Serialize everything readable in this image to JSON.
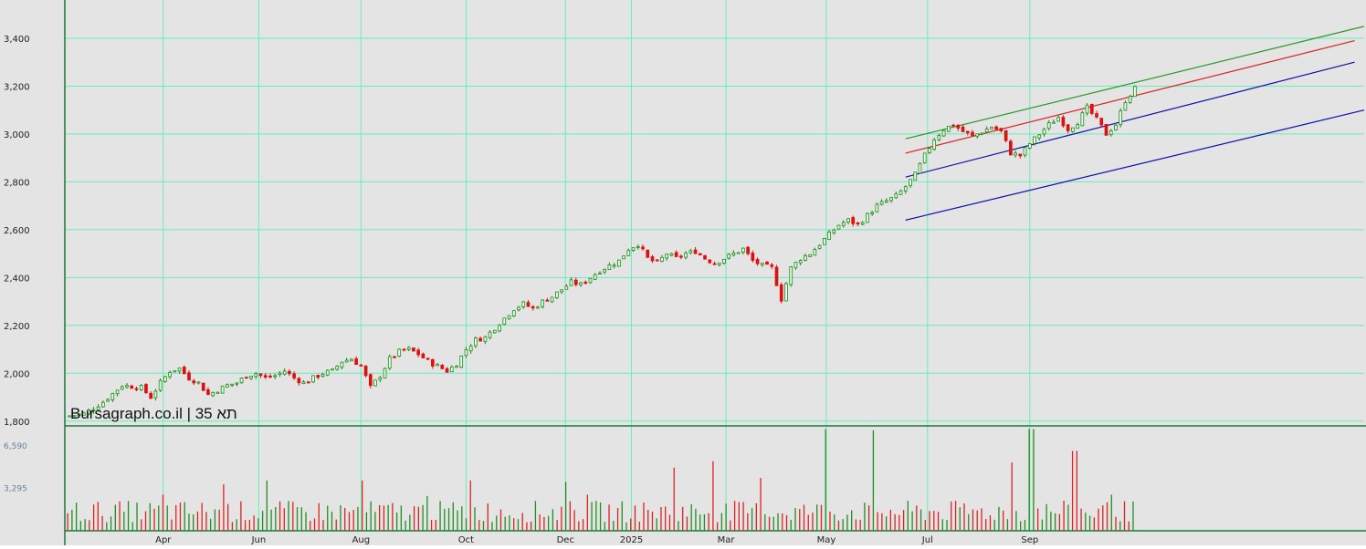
{
  "colors": {
    "background": "#e4e4e4",
    "grid": "#66eebb",
    "up": "#1a8a1a",
    "down": "#dd1111",
    "volume_up": "#1f8f1f",
    "volume_down": "#dd2222",
    "channel_top": "#2a9a2a",
    "channel_mid": "#dd2222",
    "channel_blue": "#1010aa",
    "panel_border": "#1a7a3a"
  },
  "watermark": "Bursagraph.co.il | תא 35",
  "chart_data": [
    {
      "type": "candlestick",
      "ylim": [
        1780,
        3560
      ],
      "yticks": [
        "3,400",
        "3,200",
        "3,000",
        "2,800",
        "2,600",
        "2,400",
        "2,200",
        "2,000",
        "1,800"
      ],
      "ytick_values": [
        3400,
        3200,
        3000,
        2800,
        2600,
        2400,
        2200,
        2000,
        1800
      ],
      "x_range": [
        0,
        136
      ],
      "x_ticks": [
        {
          "label": "Apr",
          "x": 10.3
        },
        {
          "label": "Jun",
          "x": 20.3
        },
        {
          "label": "Aug",
          "x": 31
        },
        {
          "label": "Oct",
          "x": 42
        },
        {
          "label": "Dec",
          "x": 52.4
        },
        {
          "label": "2025",
          "x": 59.3
        },
        {
          "label": "Mar",
          "x": 69.2
        },
        {
          "label": "May",
          "x": 79.7
        },
        {
          "label": "Jul",
          "x": 90.3
        },
        {
          "label": "Sep",
          "x": 101
        }
      ],
      "grid_x": [
        10.3,
        20.3,
        31,
        42,
        52.4,
        59.3,
        69.2,
        79.7,
        90.3,
        101
      ],
      "grid_y": [
        3400,
        3200,
        3000,
        2800,
        2600,
        2400,
        2200,
        2000,
        1800
      ],
      "close_anchors": [
        [
          0,
          1820
        ],
        [
          2,
          1830
        ],
        [
          4,
          1880
        ],
        [
          6,
          1950
        ],
        [
          8,
          1940
        ],
        [
          9,
          1900
        ],
        [
          10,
          1960
        ],
        [
          11,
          2010
        ],
        [
          12,
          2020
        ],
        [
          13,
          1980
        ],
        [
          14,
          1960
        ],
        [
          15,
          1910
        ],
        [
          16,
          1930
        ],
        [
          17,
          1950
        ],
        [
          18,
          1960
        ],
        [
          19,
          1990
        ],
        [
          20,
          2000
        ],
        [
          21,
          1980
        ],
        [
          22,
          1990
        ],
        [
          23,
          2010
        ],
        [
          24,
          1980
        ],
        [
          25,
          1960
        ],
        [
          26,
          1980
        ],
        [
          27,
          2000
        ],
        [
          28,
          2010
        ],
        [
          29,
          2050
        ],
        [
          30,
          2060
        ],
        [
          31,
          2030
        ],
        [
          32,
          1940
        ],
        [
          33,
          1990
        ],
        [
          34,
          2060
        ],
        [
          35,
          2090
        ],
        [
          36,
          2100
        ],
        [
          37,
          2080
        ],
        [
          38,
          2050
        ],
        [
          39,
          2030
        ],
        [
          40,
          2010
        ],
        [
          41,
          2040
        ],
        [
          42,
          2100
        ],
        [
          43,
          2140
        ],
        [
          44,
          2150
        ],
        [
          45,
          2190
        ],
        [
          46,
          2230
        ],
        [
          47,
          2270
        ],
        [
          48,
          2290
        ],
        [
          49,
          2270
        ],
        [
          50,
          2300
        ],
        [
          51,
          2320
        ],
        [
          52,
          2350
        ],
        [
          53,
          2380
        ],
        [
          54,
          2370
        ],
        [
          55,
          2400
        ],
        [
          56,
          2430
        ],
        [
          57,
          2450
        ],
        [
          58,
          2470
        ],
        [
          59,
          2520
        ],
        [
          60,
          2540
        ],
        [
          61,
          2480
        ],
        [
          62,
          2460
        ],
        [
          63,
          2500
        ],
        [
          64,
          2480
        ],
        [
          65,
          2500
        ],
        [
          66,
          2510
        ],
        [
          67,
          2480
        ],
        [
          68,
          2460
        ],
        [
          69,
          2480
        ],
        [
          70,
          2500
        ],
        [
          71,
          2520
        ],
        [
          72,
          2470
        ],
        [
          73,
          2450
        ],
        [
          74,
          2440
        ],
        [
          75,
          2310
        ],
        [
          76,
          2440
        ],
        [
          77,
          2480
        ],
        [
          78,
          2500
        ],
        [
          79,
          2540
        ],
        [
          80,
          2580
        ],
        [
          81,
          2620
        ],
        [
          82,
          2640
        ],
        [
          83,
          2620
        ],
        [
          84,
          2660
        ],
        [
          85,
          2700
        ],
        [
          86,
          2720
        ],
        [
          87,
          2740
        ],
        [
          88,
          2780
        ],
        [
          89,
          2830
        ],
        [
          90,
          2910
        ],
        [
          91,
          2980
        ],
        [
          92,
          3020
        ],
        [
          93,
          3040
        ],
        [
          94,
          3010
        ],
        [
          95,
          2990
        ],
        [
          96,
          3010
        ],
        [
          97,
          3030
        ],
        [
          98,
          3010
        ],
        [
          99,
          2920
        ],
        [
          100,
          2910
        ],
        [
          101,
          2960
        ],
        [
          102,
          3000
        ],
        [
          103,
          3040
        ],
        [
          104,
          3070
        ],
        [
          105,
          3020
        ],
        [
          106,
          3050
        ],
        [
          107,
          3110
        ],
        [
          108,
          3060
        ],
        [
          109,
          3000
        ],
        [
          110,
          3040
        ],
        [
          111,
          3140
        ],
        [
          112,
          3190
        ]
      ],
      "channels": [
        {
          "name": "",
          "color_key": "channel_top",
          "from": [
            88,
            2980
          ],
          "to": [
            136,
            3450
          ]
        },
        {
          "name": "",
          "color_key": "channel_mid",
          "from": [
            88,
            2920
          ],
          "to": [
            135,
            3390
          ]
        },
        {
          "name": "",
          "color_key": "channel_blue",
          "from": [
            88,
            2820
          ],
          "to": [
            135,
            3300
          ]
        },
        {
          "name": "",
          "color_key": "channel_blue",
          "from": [
            88,
            2640
          ],
          "to": [
            136,
            3100
          ]
        }
      ]
    },
    {
      "type": "bar",
      "name": "volume",
      "yticks": [
        "6,590",
        "3,295"
      ],
      "ytick_values": [
        6590,
        3295
      ],
      "ylim": [
        0,
        8000
      ],
      "x_range": [
        0,
        136
      ],
      "base_level": 1300,
      "spikes": [
        [
          10.3,
          2800
        ],
        [
          16.5,
          3600
        ],
        [
          21.2,
          3900
        ],
        [
          31.1,
          3900
        ],
        [
          37.8,
          2700
        ],
        [
          42.5,
          3900
        ],
        [
          52.5,
          3800
        ],
        [
          54.8,
          2800
        ],
        [
          63.8,
          4900
        ],
        [
          68.0,
          5400
        ],
        [
          72.9,
          4100
        ],
        [
          79.8,
          7900
        ],
        [
          84.7,
          7800
        ],
        [
          99.0,
          5300
        ],
        [
          101.2,
          7900
        ],
        [
          105.7,
          6200
        ],
        [
          109.6,
          2800
        ]
      ]
    }
  ]
}
